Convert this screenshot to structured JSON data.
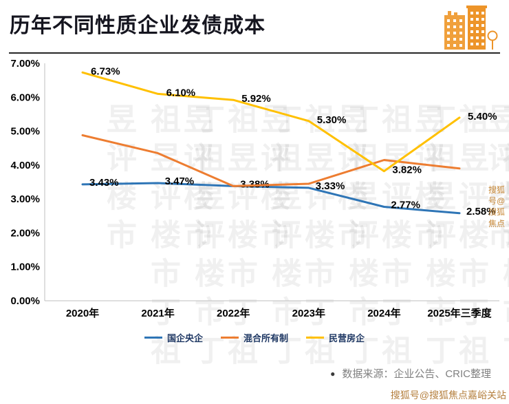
{
  "header": {
    "title": "历年不同性质企业发债成本"
  },
  "watermarks": {
    "brand": "丁祖昱评楼市",
    "sohu": "搜狐号@搜狐焦点嘉峪关站"
  },
  "footer": {
    "bullet": "●",
    "source": "数据来源：企业公告、CRIC整理"
  },
  "chart_data": {
    "type": "line",
    "title": "历年不同性质企业发债成本",
    "categories": [
      "2020年",
      "2021年",
      "2022年",
      "2023年",
      "2024年",
      "2025年三季度"
    ],
    "series": [
      {
        "name": "国企央企",
        "color": "#2E75B6",
        "values": [
          3.43,
          3.47,
          3.38,
          3.33,
          2.77,
          2.58
        ],
        "labels": [
          "3.43%",
          "3.47%",
          "3.38%",
          "3.33%",
          "2.77%",
          "2.58%"
        ]
      },
      {
        "name": "混合所有制",
        "color": "#ED7D31",
        "values": [
          4.88,
          4.35,
          3.38,
          3.45,
          4.15,
          3.9
        ],
        "labels": []
      },
      {
        "name": "民营房企",
        "color": "#FFC000",
        "values": [
          6.73,
          6.1,
          5.92,
          5.3,
          3.82,
          5.4
        ],
        "labels": [
          "6.73%",
          "6.10%",
          "5.92%",
          "5.30%",
          "3.82%",
          "5.40%"
        ]
      }
    ],
    "ylim": [
      0,
      7
    ],
    "ytick_labels": [
      "0.00%",
      "1.00%",
      "2.00%",
      "3.00%",
      "4.00%",
      "5.00%",
      "6.00%",
      "7.00%"
    ],
    "grid": false,
    "legend_position": "bottom"
  }
}
